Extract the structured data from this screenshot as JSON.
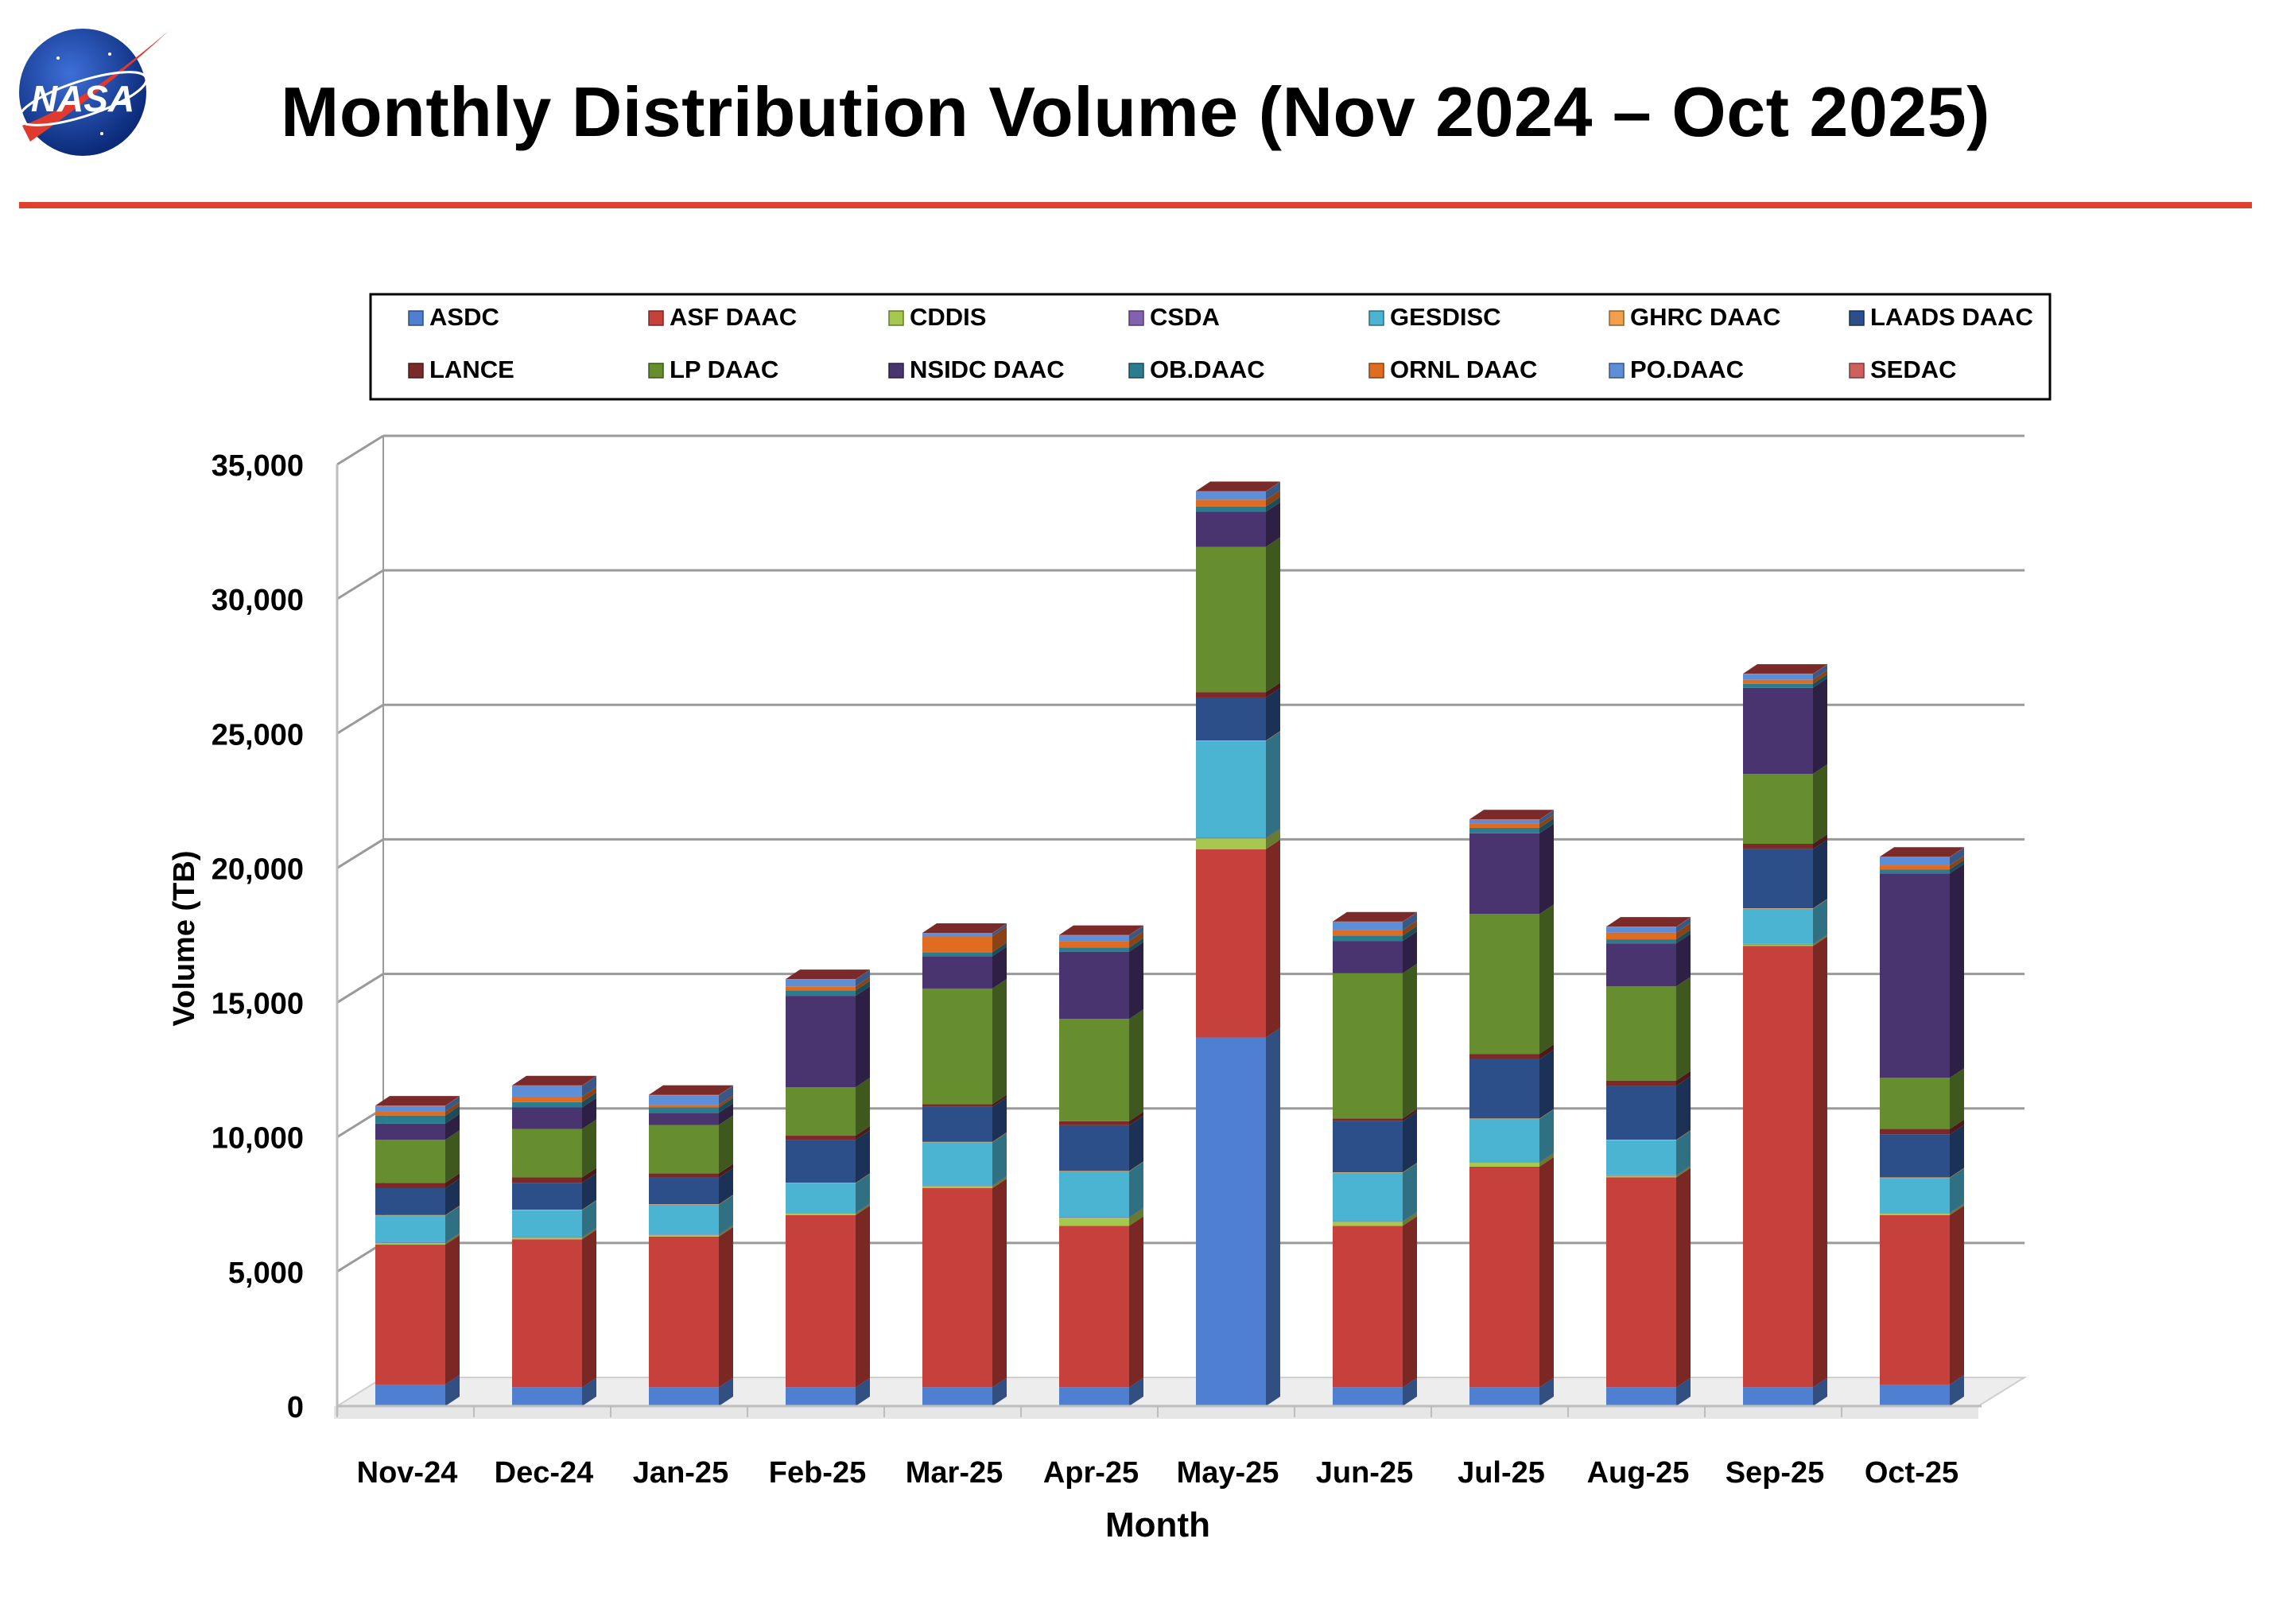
{
  "logo": {
    "text": "NASA"
  },
  "page": {
    "title": "Monthly Distribution Volume (Nov 2024 – Oct 2025)"
  },
  "colors": {
    "rule": "#e0402e",
    "grid": "#9a9a9a"
  },
  "chart_data": {
    "type": "bar",
    "stacked": true,
    "three_d": true,
    "title": "Monthly Distribution Volume (Nov 2024 – Oct 2025)",
    "xlabel": "Month",
    "ylabel": "Volume (TB)",
    "ylim": [
      0,
      35000
    ],
    "yticks": [
      0,
      5000,
      10000,
      15000,
      20000,
      25000,
      30000,
      35000
    ],
    "ytick_labels": [
      "0",
      "5,000",
      "10,000",
      "15,000",
      "20,000",
      "25,000",
      "30,000",
      "35,000"
    ],
    "grid": true,
    "legend_position": "top",
    "categories": [
      "Nov-24",
      "Dec-24",
      "Jan-25",
      "Feb-25",
      "Mar-25",
      "Apr-25",
      "May-25",
      "Jun-25",
      "Jul-25",
      "Aug-25",
      "Sep-25",
      "Oct-25"
    ],
    "series": [
      {
        "name": "ASDC",
        "color": "#4f7fd0",
        "values": [
          800,
          700,
          700,
          700,
          700,
          700,
          13700,
          700,
          700,
          700,
          700,
          800
        ]
      },
      {
        "name": "ASF DAAC",
        "color": "#c6403c",
        "values": [
          5200,
          5500,
          5600,
          6400,
          7400,
          6000,
          7000,
          6000,
          8200,
          7800,
          16400,
          6300
        ]
      },
      {
        "name": "CDDIS",
        "color": "#a6c84e",
        "values": [
          60,
          60,
          60,
          60,
          80,
          300,
          400,
          150,
          150,
          60,
          60,
          60
        ]
      },
      {
        "name": "CSDA",
        "color": "#8460b0",
        "values": [
          20,
          20,
          20,
          20,
          20,
          20,
          20,
          20,
          20,
          20,
          20,
          20
        ]
      },
      {
        "name": "GESDISC",
        "color": "#4bb4d2",
        "values": [
          1000,
          1000,
          1100,
          1100,
          1600,
          1700,
          3600,
          1800,
          1600,
          1300,
          1300,
          1300
        ]
      },
      {
        "name": "GHRC DAAC",
        "color": "#f2a14a",
        "values": [
          20,
          20,
          20,
          20,
          20,
          20,
          20,
          20,
          20,
          20,
          20,
          20
        ]
      },
      {
        "name": "LAADS DAAC",
        "color": "#2c4f8a",
        "values": [
          1000,
          1000,
          1000,
          1600,
          1300,
          1700,
          1600,
          1900,
          2200,
          2000,
          2200,
          1600
        ]
      },
      {
        "name": "LANCE",
        "color": "#7a2a28",
        "values": [
          200,
          200,
          150,
          150,
          100,
          150,
          200,
          100,
          200,
          200,
          200,
          200
        ]
      },
      {
        "name": "LP DAAC",
        "color": "#668e2e",
        "values": [
          1600,
          1800,
          1800,
          1800,
          4300,
          3800,
          5400,
          5400,
          5200,
          3500,
          2600,
          1900
        ]
      },
      {
        "name": "NSIDC DAAC",
        "color": "#4a3470",
        "values": [
          600,
          800,
          450,
          3400,
          1200,
          2500,
          1300,
          1200,
          3000,
          1600,
          3200,
          7600
        ]
      },
      {
        "name": "OB.DAAC",
        "color": "#2b7c8e",
        "values": [
          300,
          200,
          200,
          200,
          150,
          150,
          200,
          200,
          200,
          150,
          150,
          150
        ]
      },
      {
        "name": "ORNL DAAC",
        "color": "#e06c22",
        "values": [
          150,
          200,
          100,
          150,
          600,
          250,
          250,
          200,
          150,
          250,
          150,
          150
        ]
      },
      {
        "name": "PO.DAAC",
        "color": "#5d8ed8",
        "values": [
          200,
          400,
          350,
          250,
          100,
          200,
          300,
          300,
          150,
          200,
          200,
          300
        ]
      },
      {
        "name": "SEDAC",
        "color": "#d06060",
        "values": [
          20,
          20,
          20,
          20,
          20,
          20,
          20,
          20,
          20,
          20,
          20,
          20
        ]
      }
    ]
  }
}
